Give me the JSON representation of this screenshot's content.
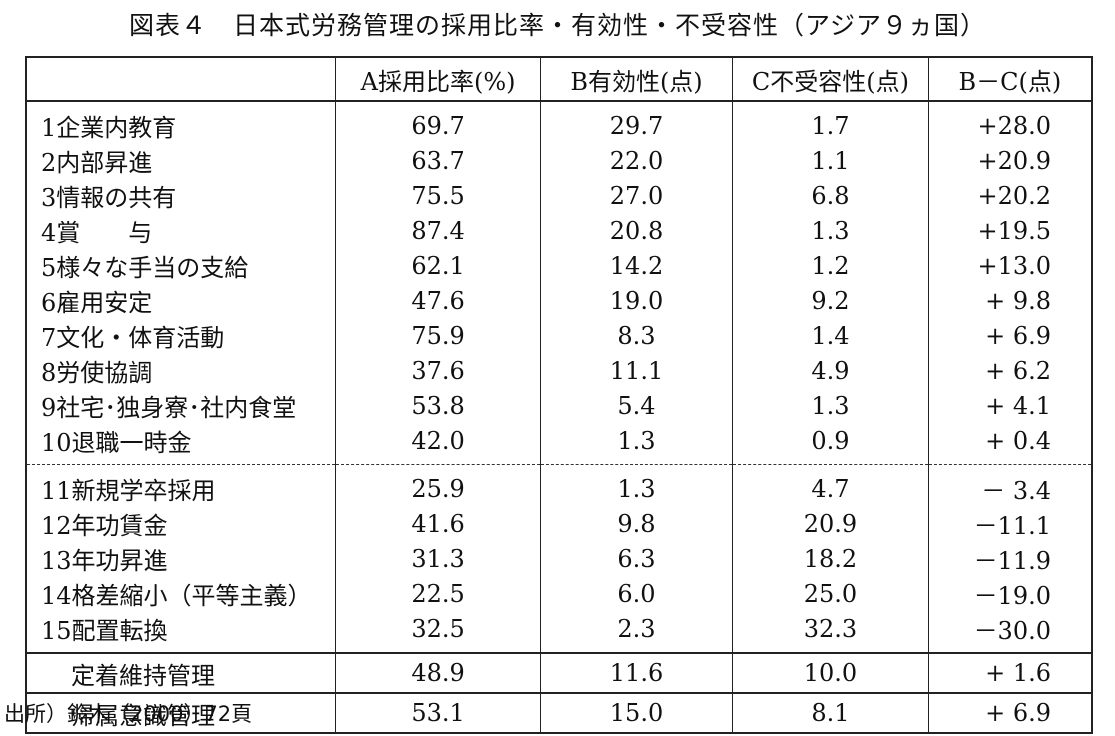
{
  "title": "図表４　日本式労務管理の採用比率・有効性・不受容性（アジア９ヵ国）",
  "headers": [
    "",
    "A採用比率(%)",
    "B有効性(点)",
    "C不受容性(点)",
    "B－C(点)"
  ],
  "rows_group1": [
    {
      "label": "1企業内教育",
      "a": "69.7",
      "b": "29.7",
      "c": "1.7",
      "d": "+28.0"
    },
    {
      "label": "2内部昇進",
      "a": "63.7",
      "b": "22.0",
      "c": "1.1",
      "d": "+20.9"
    },
    {
      "label": "3情報の共有",
      "a": "75.5",
      "b": "27.0",
      "c": "6.8",
      "d": "+20.2"
    },
    {
      "label": "4賞　　与",
      "a": "87.4",
      "b": "20.8",
      "c": "1.3",
      "d": "+19.5"
    },
    {
      "label": "5様々な手当の支給",
      "a": "62.1",
      "b": "14.2",
      "c": "1.2",
      "d": "+13.0"
    },
    {
      "label": "6雇用安定",
      "a": "47.6",
      "b": "19.0",
      "c": "9.2",
      "d": "+ 9.8"
    },
    {
      "label": "7文化・体育活動",
      "a": "75.9",
      "b": "8.3",
      "c": "1.4",
      "d": "+ 6.9"
    },
    {
      "label": "8労使協調",
      "a": "37.6",
      "b": "11.1",
      "c": "4.9",
      "d": "+ 6.2"
    },
    {
      "label": "9社宅･独身寮･社内食堂",
      "a": "53.8",
      "b": "5.4",
      "c": "1.3",
      "d": "+ 4.1"
    },
    {
      "label": "10退職一時金",
      "a": "42.0",
      "b": "1.3",
      "c": "0.9",
      "d": "+ 0.4"
    }
  ],
  "rows_group2": [
    {
      "label": "11新規学卒採用",
      "a": "25.9",
      "b": "1.3",
      "c": "4.7",
      "d": "－ 3.4"
    },
    {
      "label": "12年功賃金",
      "a": "41.6",
      "b": "9.8",
      "c": "20.9",
      "d": "－11.1"
    },
    {
      "label": "13年功昇進",
      "a": "31.3",
      "b": "6.3",
      "c": "18.2",
      "d": "－11.9"
    },
    {
      "label": "14格差縮小（平等主義）",
      "a": "22.5",
      "b": "6.0",
      "c": "25.0",
      "d": "－19.0"
    },
    {
      "label": "15配置転換",
      "a": "32.5",
      "b": "2.3",
      "c": "32.3",
      "d": "－30.0"
    }
  ],
  "summary": [
    {
      "label": "定着維持管理",
      "a": "48.9",
      "b": "11.6",
      "c": "10.0",
      "d": "+ 1.6"
    },
    {
      "label": "帰属意識管理",
      "a": "53.1",
      "b": "15.0",
      "c": "8.1",
      "d": "+ 6.9"
    }
  ],
  "source": "出所）鈴木（2000）72頁"
}
